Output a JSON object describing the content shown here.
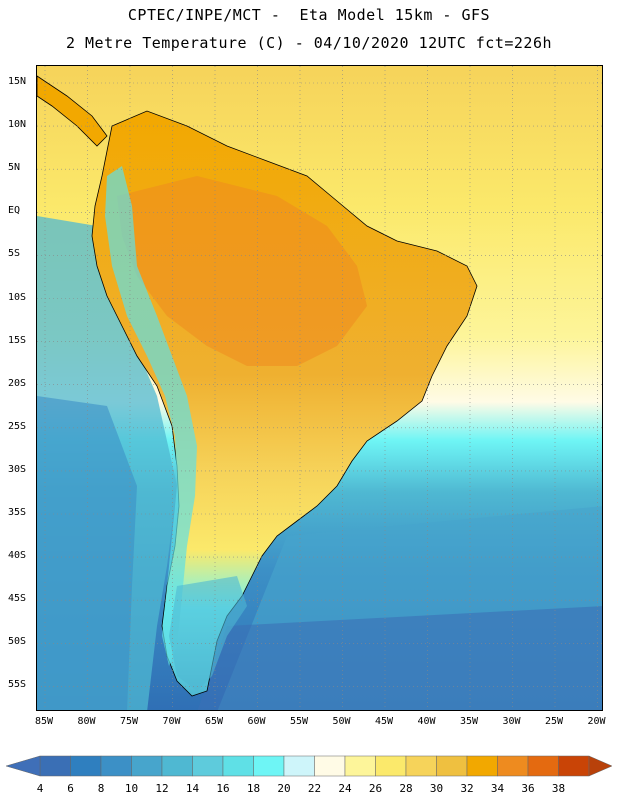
{
  "title_line1": "CPTEC/INPE/MCT -  Eta Model 15km - GFS",
  "title_line2": "2 Metre Temperature (C) - 04/10/2020 12UTC fct=226h",
  "map": {
    "lat_labels": [
      "15N",
      "10N",
      "5N",
      "EQ",
      "5S",
      "10S",
      "15S",
      "20S",
      "25S",
      "30S",
      "35S",
      "40S",
      "45S",
      "50S",
      "55S"
    ],
    "lon_labels": [
      "85W",
      "80W",
      "75W",
      "70W",
      "65W",
      "60W",
      "55W",
      "50W",
      "45W",
      "40W",
      "35W",
      "30W",
      "25W",
      "20W"
    ]
  },
  "colorbar": {
    "labels": [
      "4",
      "6",
      "8",
      "10",
      "12",
      "14",
      "16",
      "18",
      "20",
      "22",
      "24",
      "26",
      "28",
      "30",
      "32",
      "34",
      "36",
      "38"
    ],
    "colors": [
      "#3a6fb5",
      "#2f7fbf",
      "#3c90c6",
      "#47a5cc",
      "#4fb8d2",
      "#5ecbdc",
      "#5fe0e6",
      "#6ef5f5",
      "#cef5fa",
      "#fffbe6",
      "#fdf59a",
      "#fbe96b",
      "#f6d35a",
      "#efc040",
      "#f2a800",
      "#ee8b1f",
      "#e46a10",
      "#c94406"
    ],
    "low_color": "#3f6fb8",
    "high_color": "#b8410a"
  }
}
